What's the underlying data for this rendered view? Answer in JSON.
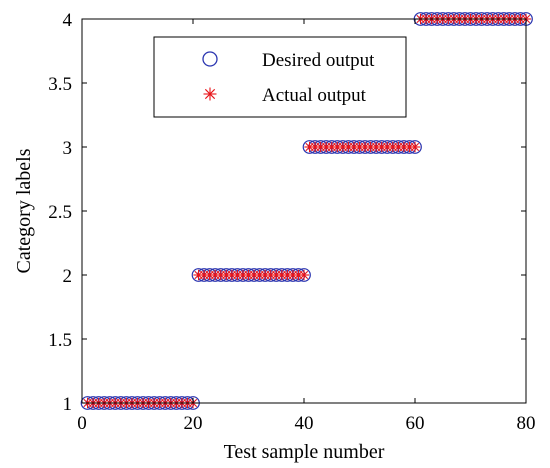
{
  "chart_data": {
    "type": "scatter",
    "title": "",
    "xlabel": "Test sample number",
    "ylabel": "Category labels",
    "xlim": [
      0,
      80
    ],
    "ylim": [
      1,
      4
    ],
    "xticks": [
      "0",
      "20",
      "40",
      "60",
      "80"
    ],
    "yticks": [
      "1",
      "1.5",
      "2",
      "2.5",
      "3",
      "3.5",
      "4"
    ],
    "grid": false,
    "legend_position": "top-center",
    "x": [
      1,
      2,
      3,
      4,
      5,
      6,
      7,
      8,
      9,
      10,
      11,
      12,
      13,
      14,
      15,
      16,
      17,
      18,
      19,
      20,
      21,
      22,
      23,
      24,
      25,
      26,
      27,
      28,
      29,
      30,
      31,
      32,
      33,
      34,
      35,
      36,
      37,
      38,
      39,
      40,
      41,
      42,
      43,
      44,
      45,
      46,
      47,
      48,
      49,
      50,
      51,
      52,
      53,
      54,
      55,
      56,
      57,
      58,
      59,
      60,
      61,
      62,
      63,
      64,
      65,
      66,
      67,
      68,
      69,
      70,
      71,
      72,
      73,
      74,
      75,
      76,
      77,
      78,
      79,
      80
    ],
    "series": [
      {
        "name": "Desired output",
        "marker": "circle",
        "color": "#2a35b0",
        "values": [
          1,
          1,
          1,
          1,
          1,
          1,
          1,
          1,
          1,
          1,
          1,
          1,
          1,
          1,
          1,
          1,
          1,
          1,
          1,
          1,
          2,
          2,
          2,
          2,
          2,
          2,
          2,
          2,
          2,
          2,
          2,
          2,
          2,
          2,
          2,
          2,
          2,
          2,
          2,
          2,
          3,
          3,
          3,
          3,
          3,
          3,
          3,
          3,
          3,
          3,
          3,
          3,
          3,
          3,
          3,
          3,
          3,
          3,
          3,
          3,
          4,
          4,
          4,
          4,
          4,
          4,
          4,
          4,
          4,
          4,
          4,
          4,
          4,
          4,
          4,
          4,
          4,
          4,
          4,
          4
        ]
      },
      {
        "name": "Actual output",
        "marker": "asterisk",
        "color": "#e8141a",
        "values": [
          1,
          1,
          1,
          1,
          1,
          1,
          1,
          1,
          1,
          1,
          1,
          1,
          1,
          1,
          1,
          1,
          1,
          1,
          1,
          1,
          2,
          2,
          2,
          2,
          2,
          2,
          2,
          2,
          2,
          2,
          2,
          2,
          2,
          2,
          2,
          2,
          2,
          2,
          2,
          2,
          3,
          3,
          3,
          3,
          3,
          3,
          3,
          3,
          3,
          3,
          3,
          3,
          3,
          3,
          3,
          3,
          3,
          3,
          3,
          3,
          4,
          4,
          4,
          4,
          4,
          4,
          4,
          4,
          4,
          4,
          4,
          4,
          4,
          4,
          4,
          4,
          4,
          4,
          4,
          4
        ]
      }
    ]
  }
}
